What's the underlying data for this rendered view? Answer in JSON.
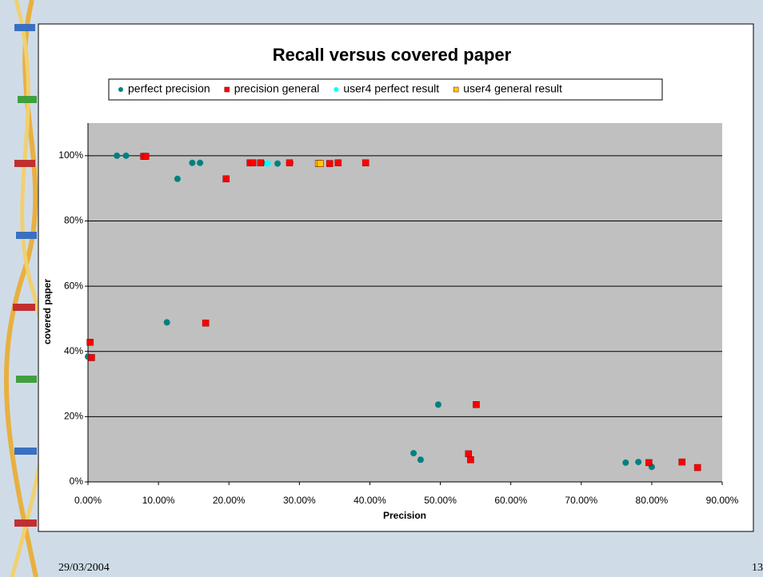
{
  "chart_data": {
    "type": "scatter",
    "title": "Recall versus covered paper",
    "x_label": "Precision",
    "y_label": "covered paper",
    "xlim": [
      0,
      90
    ],
    "ylim": [
      0,
      110
    ],
    "xticks": [
      {
        "value": 0,
        "label": "0.00%"
      },
      {
        "value": 10,
        "label": "10.00%"
      },
      {
        "value": 20,
        "label": "20.00%"
      },
      {
        "value": 30,
        "label": "30.00%"
      },
      {
        "value": 40,
        "label": "40.00%"
      },
      {
        "value": 50,
        "label": "50.00%"
      },
      {
        "value": 60,
        "label": "60.00%"
      },
      {
        "value": 70,
        "label": "70.00%"
      },
      {
        "value": 80,
        "label": "80.00%"
      },
      {
        "value": 90,
        "label": "90.00%"
      }
    ],
    "yticks": [
      {
        "value": 0,
        "label": "0%"
      },
      {
        "value": 20,
        "label": "20%"
      },
      {
        "value": 40,
        "label": "40%"
      },
      {
        "value": 60,
        "label": "60%"
      },
      {
        "value": 80,
        "label": "80%"
      },
      {
        "value": 100,
        "label": "100%"
      }
    ],
    "grid": true,
    "legend": "top",
    "series": [
      {
        "name": "perfect precision",
        "color": "#008080",
        "marker": "circle",
        "x": [
          4.1,
          5.4,
          12.7,
          14.8,
          15.9,
          11.2,
          0,
          24.7,
          26.9,
          28.7,
          46.2,
          47.2,
          49.7,
          76.3,
          78.1,
          80.0
        ],
        "values": [
          100,
          100,
          92.9,
          97.8,
          97.8,
          48.9,
          38.4,
          97.8,
          97.6,
          97.8,
          8.8,
          6.8,
          23.7,
          5.9,
          6.1,
          4.6
        ]
      },
      {
        "name": "precision general",
        "color": "#ff0000",
        "marker": "square",
        "x": [
          0.3,
          0.5,
          7.9,
          8.2,
          19.6,
          16.7,
          23.0,
          23.4,
          24.5,
          28.6,
          32.8,
          34.3,
          35.5,
          39.4,
          54.0,
          54.3,
          55.1,
          79.6,
          84.3,
          86.5
        ],
        "values": [
          42.8,
          38.1,
          99.8,
          99.8,
          92.9,
          48.7,
          97.8,
          97.8,
          97.8,
          97.8,
          97.6,
          97.6,
          97.8,
          97.8,
          8.6,
          6.8,
          23.7,
          5.9,
          6.1,
          4.4
        ]
      },
      {
        "name": "user4 perfect result",
        "color": "#00ffff",
        "marker": "circle",
        "x": [
          25.5
        ],
        "values": [
          97.6
        ]
      },
      {
        "name": "user4 general result",
        "color": "#ffcc00",
        "marker": "square",
        "x": [
          32.7,
          33.0
        ],
        "values": [
          97.6,
          97.6
        ]
      }
    ]
  },
  "footer": {
    "date": "29/03/2004",
    "page": "13"
  }
}
